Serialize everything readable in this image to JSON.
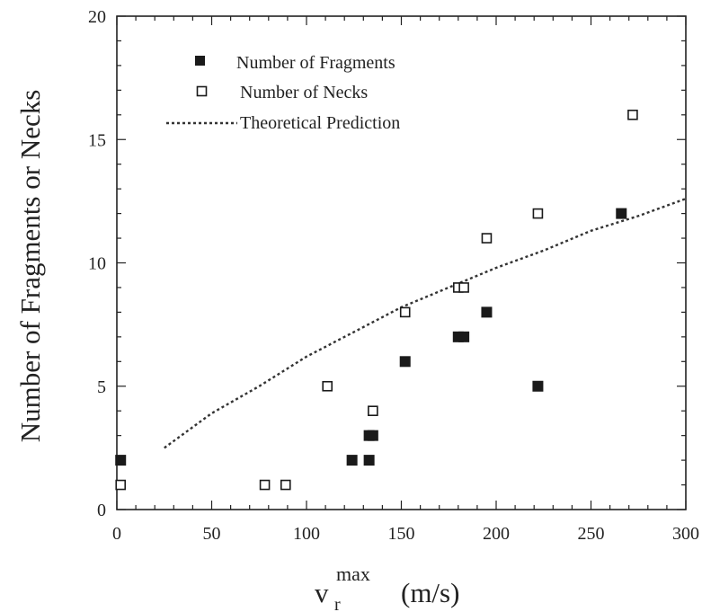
{
  "chart_data": {
    "type": "scatter",
    "ylabel": "Number of Fragments or Necks",
    "xlabel": {
      "base": "v",
      "subscript": "r",
      "superscript": "max",
      "unit": "(m/s)"
    },
    "xlim": [
      0,
      300
    ],
    "ylim": [
      0,
      20
    ],
    "xticks": [
      0,
      50,
      100,
      150,
      200,
      250,
      300
    ],
    "yticks": [
      0,
      5,
      10,
      15,
      20
    ],
    "grid": false,
    "legend_position": "top-left",
    "series": [
      {
        "name": "Number of Fragments",
        "marker": "filled-square",
        "color": "#1a1a1a",
        "x": [
          2,
          124,
          133,
          133,
          135,
          152,
          180,
          183,
          195,
          222,
          266
        ],
        "y": [
          2,
          2,
          2,
          3,
          3,
          6,
          7,
          7,
          8,
          5,
          12
        ]
      },
      {
        "name": "Number of Necks",
        "marker": "open-square",
        "color": "#1a1a1a",
        "x": [
          2,
          78,
          89,
          111,
          135,
          152,
          180,
          183,
          195,
          222,
          272
        ],
        "y": [
          1,
          1,
          1,
          5,
          4,
          8,
          9,
          9,
          11,
          12,
          16
        ]
      },
      {
        "name": "Theoretical Prediction",
        "style": "dotted-line",
        "color": "#333333",
        "x": [
          25,
          50,
          75,
          100,
          125,
          150,
          175,
          200,
          225,
          250,
          275,
          300
        ],
        "y": [
          2.5,
          3.9,
          5.0,
          6.2,
          7.2,
          8.2,
          9.0,
          9.8,
          10.5,
          11.3,
          11.9,
          12.6
        ]
      }
    ]
  }
}
